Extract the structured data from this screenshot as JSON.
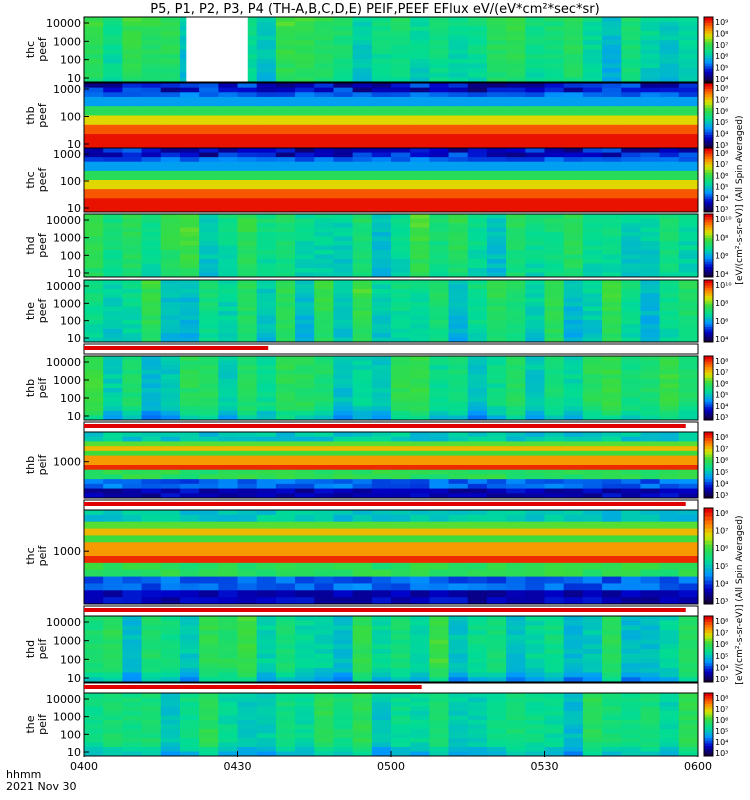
{
  "title": "P5, P1, P2, P3, P4 (TH-A,B,C,D,E) PEIF,PEEF EFlux eV/(eV*cm²*sec*sr)",
  "footer": {
    "line1": "hhmm",
    "line2": "2021 Nov 30"
  },
  "colorbar_label_upper": "[eV/(cm²-s-sr-eV)] (All Spin Averaged)",
  "colorbar_label_lower": "[eV/(cm²-s-sr-eV)] (All Spin Averaged)",
  "chart_data": {
    "type": "heatmap",
    "x_axis": {
      "ticks": [
        "0400",
        "0430",
        "0500",
        "0530",
        "0600"
      ],
      "range": [
        "04:00",
        "06:00"
      ]
    },
    "panels": [
      {
        "label": "thc peef",
        "yticks": [
          "10",
          "100",
          "1000",
          "10000"
        ],
        "cbar_ticks": [
          "10⁴",
          "10⁵",
          "10⁶",
          "10⁷",
          "10⁸",
          "10⁹"
        ],
        "profile": "uniform_green",
        "gap": [
          "04:20",
          "04:32"
        ]
      },
      {
        "label": "thb peef",
        "yticks": [
          "10",
          "100",
          "1000"
        ],
        "cbar_ticks": [
          "10³",
          "10⁴",
          "10⁵",
          "10⁶",
          "10⁷",
          "10⁸"
        ],
        "profile": "hot_low"
      },
      {
        "label": "thc peef",
        "yticks": [
          "10",
          "100",
          "1000"
        ],
        "cbar_ticks": [
          "10³",
          "10⁴",
          "10⁵",
          "10⁶",
          "10⁷",
          "10⁸"
        ],
        "profile": "hot_low"
      },
      {
        "label": "thd peef",
        "yticks": [
          "10",
          "100",
          "1000",
          "10000"
        ],
        "cbar_ticks": [
          "10⁴",
          "10⁶",
          "10⁸",
          "10¹⁰"
        ],
        "profile": "uniform_green"
      },
      {
        "label": "the peef",
        "yticks": [
          "10",
          "100",
          "1000",
          "10000"
        ],
        "cbar_ticks": [
          "10⁴",
          "10⁶",
          "10⁸",
          "10¹⁰"
        ],
        "profile": "uniform_green"
      },
      {
        "label": "thb peif",
        "yticks": [
          "10",
          "100",
          "1000",
          "10000"
        ],
        "cbar_ticks": [
          "10³",
          "10⁴",
          "10⁵",
          "10⁶",
          "10⁷",
          "10⁸"
        ],
        "profile": "ion"
      },
      {
        "label": "thb peif",
        "yticks": [
          "1000"
        ],
        "cbar_ticks": [
          "10³",
          "10⁴",
          "10⁵",
          "10⁶",
          "10⁷",
          "10⁸"
        ],
        "profile": "banded"
      },
      {
        "label": "thc peif",
        "yticks": [
          "1000"
        ],
        "cbar_ticks": [
          "10³",
          "10⁴",
          "10⁵",
          "10⁶",
          "10⁷",
          "10⁸"
        ],
        "profile": "banded"
      },
      {
        "label": "thd peif",
        "yticks": [
          "10",
          "100",
          "1000",
          "10000"
        ],
        "cbar_ticks": [
          "10³",
          "10⁴",
          "10⁵",
          "10⁶",
          "10⁷",
          "10⁸"
        ],
        "profile": "ion"
      },
      {
        "label": "the peif",
        "yticks": [
          "10",
          "100",
          "1000",
          "10000"
        ],
        "cbar_ticks": [
          "10³",
          "10⁴",
          "10⁵",
          "10⁶",
          "10⁷",
          "10⁸"
        ],
        "profile": "ion"
      }
    ],
    "colormap": "rainbow"
  }
}
